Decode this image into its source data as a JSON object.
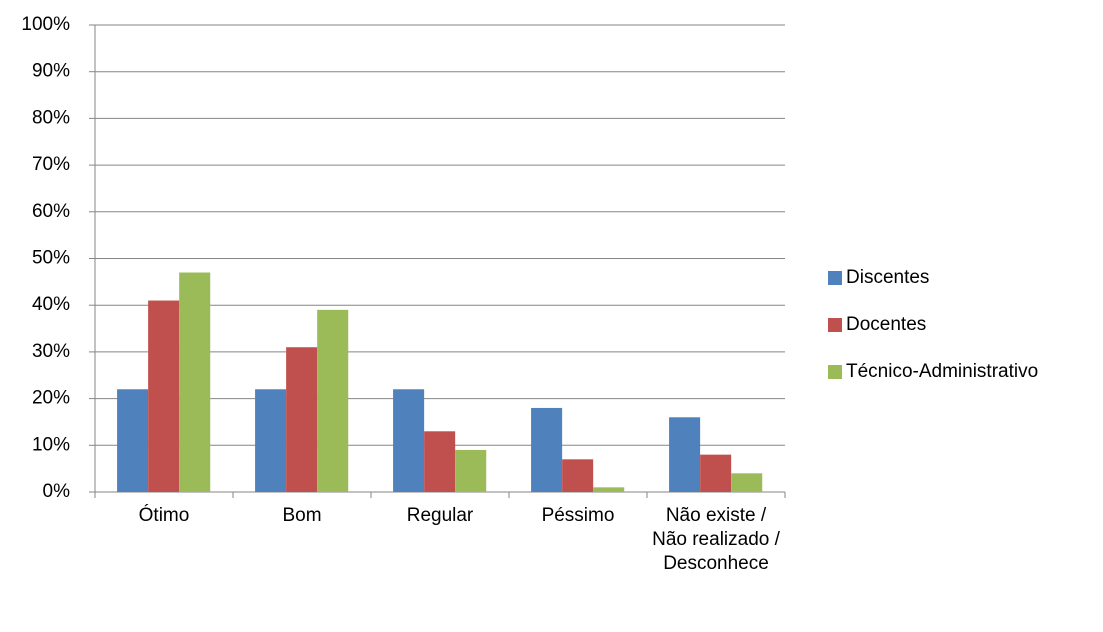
{
  "chart_data": {
    "type": "bar",
    "categories": [
      "Ótimo",
      "Bom",
      "Regular",
      "Péssimo",
      "Não existe / Não realizado / Desconhece"
    ],
    "series": [
      {
        "name": "Discentes",
        "color": "#4f81bd",
        "values": [
          22,
          22,
          22,
          18,
          16
        ]
      },
      {
        "name": "Docentes",
        "color": "#c0504d",
        "values": [
          41,
          31,
          13,
          7,
          8
        ]
      },
      {
        "name": "Técnico-Administrativo",
        "color": "#9bbb59",
        "values": [
          47,
          39,
          9,
          1,
          4
        ]
      }
    ],
    "ylim": [
      0,
      100
    ],
    "yticks": [
      {
        "value": 0,
        "label": "0%"
      },
      {
        "value": 10,
        "label": "10%"
      },
      {
        "value": 20,
        "label": "20%"
      },
      {
        "value": 30,
        "label": "30%"
      },
      {
        "value": 40,
        "label": "40%"
      },
      {
        "value": 50,
        "label": "50%"
      },
      {
        "value": 60,
        "label": "60%"
      },
      {
        "value": 70,
        "label": "70%"
      },
      {
        "value": 80,
        "label": "80%"
      },
      {
        "value": 90,
        "label": "90%"
      },
      {
        "value": 100,
        "label": "100%"
      }
    ],
    "grid": true,
    "legend": "right"
  }
}
